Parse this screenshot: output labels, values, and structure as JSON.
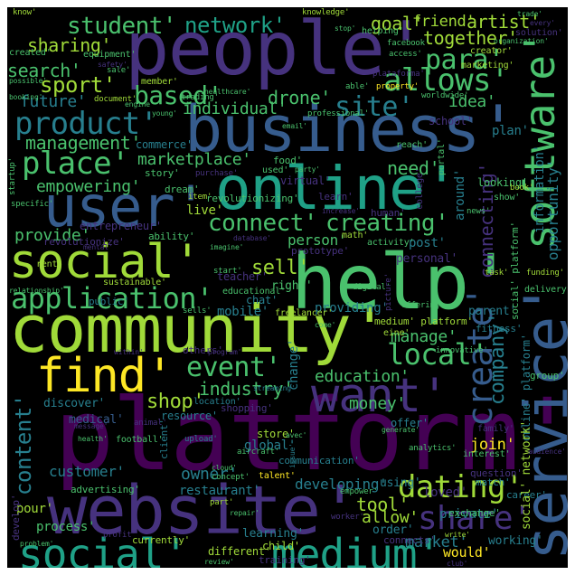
{
  "palette": [
    "#440154",
    "#46327e",
    "#365c8d",
    "#277f8e",
    "#1fa187",
    "#4ac16d",
    "#a0da39",
    "#fde725"
  ],
  "words": [
    {
      "text": "people'",
      "color": "#46327e"
    },
    {
      "text": "platform'",
      "color": "#440154"
    },
    {
      "text": "website'",
      "color": "#46327e"
    },
    {
      "text": "community'",
      "color": "#a0da39"
    },
    {
      "text": "help'",
      "color": "#4ac16d"
    },
    {
      "text": "business'",
      "color": "#365c8d"
    },
    {
      "text": "online'",
      "color": "#1fa187"
    },
    {
      "text": "user'",
      "color": "#365c8d"
    },
    {
      "text": "service'",
      "color": "#365c8d"
    },
    {
      "text": "social'",
      "color": "#a0da39"
    },
    {
      "text": "social'",
      "color": "#1fa187"
    },
    {
      "text": "medium'",
      "color": "#1fa187"
    },
    {
      "text": "want'",
      "color": "#46327e"
    },
    {
      "text": "find'",
      "color": "#fde725"
    },
    {
      "text": "software'",
      "color": "#4ac16d"
    },
    {
      "text": "application'",
      "color": "#4ac16d"
    },
    {
      "text": "student'",
      "color": "#4ac16d"
    },
    {
      "text": "network'",
      "color": "#1fa187"
    },
    {
      "text": "product'",
      "color": "#277f8e"
    },
    {
      "text": "place'",
      "color": "#4ac16d"
    },
    {
      "text": "connect'",
      "color": "#4ac16d"
    },
    {
      "text": "creating'",
      "color": "#4ac16d"
    },
    {
      "text": "event'",
      "color": "#4ac16d"
    },
    {
      "text": "local'",
      "color": "#4ac16d"
    },
    {
      "text": "dating'",
      "color": "#a0da39"
    },
    {
      "text": "share'",
      "color": "#46327e"
    },
    {
      "text": "create'",
      "color": "#365c8d"
    },
    {
      "text": "allows'",
      "color": "#4ac16d"
    },
    {
      "text": "site'",
      "color": "#277f8e"
    },
    {
      "text": "based'",
      "color": "#4ac16d"
    },
    {
      "text": "para'",
      "color": "#4ac16d"
    },
    {
      "text": "content'",
      "color": "#277f8e"
    },
    {
      "text": "company'",
      "color": "#277f8e"
    },
    {
      "text": "sport'",
      "color": "#a0da39"
    },
    {
      "text": "search'",
      "color": "#4ac16d"
    },
    {
      "text": "sharing'",
      "color": "#a0da39"
    },
    {
      "text": "goal'",
      "color": "#a0da39"
    },
    {
      "text": "friend'",
      "color": "#a0da39"
    },
    {
      "text": "artist'",
      "color": "#a0da39"
    },
    {
      "text": "together'",
      "color": "#a0da39"
    },
    {
      "text": "management'",
      "color": "#4ac16d"
    },
    {
      "text": "marketplace'",
      "color": "#4ac16d"
    },
    {
      "text": "empowering'",
      "color": "#4ac16d"
    },
    {
      "text": "need'",
      "color": "#4ac16d"
    },
    {
      "text": "idea'",
      "color": "#4ac16d"
    },
    {
      "text": "drone'",
      "color": "#4ac16d"
    },
    {
      "text": "individual'",
      "color": "#4ac16d"
    },
    {
      "text": "future'",
      "color": "#277f8e"
    },
    {
      "text": "provide'",
      "color": "#4ac16d"
    },
    {
      "text": "sell'",
      "color": "#a0da39"
    },
    {
      "text": "industry'",
      "color": "#4ac16d"
    },
    {
      "text": "education'",
      "color": "#4ac16d"
    },
    {
      "text": "manage'",
      "color": "#4ac16d"
    },
    {
      "text": "person'",
      "color": "#4ac16d"
    },
    {
      "text": "connecting'",
      "color": "#46327e"
    },
    {
      "text": "information'",
      "color": "#277f8e"
    },
    {
      "text": "opportunity'",
      "color": "#277f8e"
    },
    {
      "text": "shop'",
      "color": "#a0da39"
    },
    {
      "text": "money'",
      "color": "#4ac16d"
    },
    {
      "text": "customer'",
      "color": "#277f8e"
    },
    {
      "text": "owner'",
      "color": "#277f8e"
    },
    {
      "text": "tool'",
      "color": "#a0da39"
    },
    {
      "text": "allow'",
      "color": "#a0da39"
    },
    {
      "text": "market'",
      "color": "#277f8e"
    },
    {
      "text": "join'",
      "color": "#fde725"
    },
    {
      "text": "developing'",
      "color": "#277f8e"
    },
    {
      "text": "restaurant'",
      "color": "#277f8e"
    },
    {
      "text": "process'",
      "color": "#4ac16d"
    },
    {
      "text": "learning'",
      "color": "#277f8e"
    },
    {
      "text": "different'",
      "color": "#a0da39"
    },
    {
      "text": "would'",
      "color": "#fde725"
    },
    {
      "text": "working'",
      "color": "#277f8e"
    },
    {
      "text": "private'",
      "color": "#277f8e"
    },
    {
      "text": "change'",
      "color": "#277f8e"
    },
    {
      "text": "plan'",
      "color": "#277f8e"
    },
    {
      "text": "post'",
      "color": "#277f8e"
    },
    {
      "text": "around'",
      "color": "#277f8e"
    },
    {
      "text": "mobile'",
      "color": "#277f8e"
    },
    {
      "text": "parent'",
      "color": "#277f8e"
    },
    {
      "text": "chat'",
      "color": "#277f8e"
    },
    {
      "text": "right'",
      "color": "#4ac16d"
    },
    {
      "text": "live'",
      "color": "#a0da39"
    },
    {
      "text": "providing'",
      "color": "#277f8e"
    },
    {
      "text": "resource'",
      "color": "#277f8e"
    },
    {
      "text": "global'",
      "color": "#277f8e"
    },
    {
      "text": "discover'",
      "color": "#277f8e"
    },
    {
      "text": "medical'",
      "color": "#365c8d"
    },
    {
      "text": "store'",
      "color": "#a0da39"
    },
    {
      "text": "loved'",
      "color": "#46327e"
    },
    {
      "text": "using'",
      "color": "#277f8e"
    },
    {
      "text": "offer'",
      "color": "#277f8e"
    },
    {
      "text": "order'",
      "color": "#277f8e"
    },
    {
      "text": "child'",
      "color": "#a0da39"
    },
    {
      "text": "personal'",
      "color": "#46327e"
    },
    {
      "text": "pour'",
      "color": "#a0da39"
    },
    {
      "text": "entrepreneur'",
      "color": "#46327e"
    },
    {
      "text": "fitness'",
      "color": "#277f8e"
    },
    {
      "text": "teacher'",
      "color": "#46327e"
    },
    {
      "text": "looking'",
      "color": "#4ac16d"
    },
    {
      "text": "school'",
      "color": "#46327e"
    },
    {
      "text": "food'",
      "color": "#4ac16d"
    },
    {
      "text": "reach'",
      "color": "#4ac16d"
    },
    {
      "text": "commerce'",
      "color": "#277f8e"
    },
    {
      "text": "story'",
      "color": "#4ac16d"
    },
    {
      "text": "dream'",
      "color": "#4ac16d"
    },
    {
      "text": "ability'",
      "color": "#4ac16d"
    },
    {
      "text": "revolutionize'",
      "color": "#46327e"
    },
    {
      "text": "revolutionizing'",
      "color": "#4ac16d"
    },
    {
      "text": "human'",
      "color": "#46327e"
    },
    {
      "text": "activity'",
      "color": "#4ac16d"
    },
    {
      "text": "prototype'",
      "color": "#46327e"
    },
    {
      "text": "math'",
      "color": "#a0da39"
    },
    {
      "text": "virtual'",
      "color": "#46327e"
    },
    {
      "text": "learn'",
      "color": "#46327e"
    },
    {
      "text": "used'",
      "color": "#4ac16d"
    },
    {
      "text": "rent'",
      "color": "#a0da39"
    },
    {
      "text": "sustainable'",
      "color": "#a0da39"
    },
    {
      "text": "educational'",
      "color": "#4ac16d"
    },
    {
      "text": "public'",
      "color": "#277f8e"
    },
    {
      "text": "freelancer'",
      "color": "#a0da39"
    },
    {
      "text": "medium' platform'",
      "color": "#a0da39"
    },
    {
      "text": "eine'",
      "color": "#a0da39"
    },
    {
      "text": "others'",
      "color": "#46327e"
    },
    {
      "text": "innovative'",
      "color": "#4ac16d"
    },
    {
      "text": "location'",
      "color": "#277f8e"
    },
    {
      "text": "shopping'",
      "color": "#46327e"
    },
    {
      "text": "football'",
      "color": "#4ac16d"
    },
    {
      "text": "animal'",
      "color": "#46327e"
    },
    {
      "text": "client'",
      "color": "#277f8e"
    },
    {
      "text": "upload'",
      "color": "#277f8e"
    },
    {
      "text": "concept'",
      "color": "#4ac16d"
    },
    {
      "text": "talent'",
      "color": "#fde725"
    },
    {
      "text": "communication'",
      "color": "#277f8e"
    },
    {
      "text": "advertising'",
      "color": "#4ac16d"
    },
    {
      "text": "part'",
      "color": "#a0da39"
    },
    {
      "text": "analytics'",
      "color": "#4ac16d"
    },
    {
      "text": "question'",
      "color": "#46327e"
    },
    {
      "text": "career'",
      "color": "#277f8e"
    },
    {
      "text": "exchange'",
      "color": "#4ac16d"
    },
    {
      "text": "connects'",
      "color": "#46327e"
    },
    {
      "text": "currently'",
      "color": "#a0da39"
    },
    {
      "text": "profit'",
      "color": "#46327e"
    },
    {
      "text": "training'",
      "color": "#46327e"
    },
    {
      "text": "worker'",
      "color": "#46327e"
    },
    {
      "text": "empower'",
      "color": "#4ac16d"
    },
    {
      "text": "interest'",
      "color": "#4ac16d"
    },
    {
      "text": "match'",
      "color": "#277f8e"
    },
    {
      "text": "family'",
      "color": "#46327e"
    },
    {
      "text": "group'",
      "color": "#4ac16d"
    },
    {
      "text": "delivery'",
      "color": "#4ac16d"
    },
    {
      "text": "funding'",
      "color": "#a0da39"
    },
    {
      "text": "task'",
      "color": "#a0da39"
    },
    {
      "text": "book'",
      "color": "#a0da39"
    },
    {
      "text": "social' platform'",
      "color": "#4ac16d"
    },
    {
      "text": "online' platform'",
      "color": "#277f8e"
    },
    {
      "text": "social' network'",
      "color": "#a0da39"
    },
    {
      "text": "news'",
      "color": "#4ac16d"
    },
    {
      "text": "show'",
      "color": "#4ac16d"
    },
    {
      "text": "member'",
      "color": "#a0da39"
    },
    {
      "text": "equipment'",
      "color": "#4ac16d"
    },
    {
      "text": "creator'",
      "color": "#a0da39"
    },
    {
      "text": "facebook'",
      "color": "#4ac16d"
    },
    {
      "text": "access'",
      "color": "#4ac16d"
    },
    {
      "text": "marketing'",
      "color": "#a0da39"
    },
    {
      "text": "able'",
      "color": "#4ac16d"
    },
    {
      "text": "property'",
      "color": "#fde725"
    },
    {
      "text": "trading'",
      "color": "#4ac16d"
    },
    {
      "text": "document'",
      "color": "#a0da39"
    },
    {
      "text": "sale'",
      "color": "#4ac16d"
    },
    {
      "text": "created'",
      "color": "#4ac16d"
    },
    {
      "text": "solution'",
      "color": "#46327e"
    },
    {
      "text": "helping'",
      "color": "#4ac16d"
    },
    {
      "text": "knowledge'",
      "color": "#a0da39"
    },
    {
      "text": "stop'",
      "color": "#4ac16d"
    },
    {
      "text": "trade'",
      "color": "#4ac16d"
    },
    {
      "text": "every'",
      "color": "#46327e"
    },
    {
      "text": "organization'",
      "color": "#4ac16d"
    },
    {
      "text": "know'",
      "color": "#a0da39"
    },
    {
      "text": "worldwide'",
      "color": "#4ac16d"
    },
    {
      "text": "professional'",
      "color": "#4ac16d"
    },
    {
      "text": "email'",
      "color": "#4ac16d"
    },
    {
      "text": "young'",
      "color": "#4ac16d"
    },
    {
      "text": "purchase'",
      "color": "#46327e"
    },
    {
      "text": "party'",
      "color": "#4ac16d"
    },
    {
      "text": "college'",
      "color": "#46327e"
    },
    {
      "text": "portal'",
      "color": "#4ac16d"
    },
    {
      "text": "item'",
      "color": "#a0da39"
    },
    {
      "text": "increase'",
      "color": "#46327e"
    },
    {
      "text": "specific'",
      "color": "#4ac16d"
    },
    {
      "text": "startup'",
      "color": "#4ac16d"
    },
    {
      "text": "mental'",
      "color": "#46327e"
    },
    {
      "text": "imagine'",
      "color": "#4ac16d"
    },
    {
      "text": "start'",
      "color": "#4ac16d"
    },
    {
      "text": "database'",
      "color": "#46327e"
    },
    {
      "text": "relationship'",
      "color": "#4ac16d"
    },
    {
      "text": "digital'",
      "color": "#4ac16d"
    },
    {
      "text": "picture'",
      "color": "#46327e"
    },
    {
      "text": "come'",
      "color": "#4ac16d"
    },
    {
      "text": "offering'",
      "color": "#4ac16d"
    },
    {
      "text": "sells'",
      "color": "#4ac16d"
    },
    {
      "text": "program'",
      "color": "#46327e"
    },
    {
      "text": "within'",
      "color": "#46327e"
    },
    {
      "text": "streaming'",
      "color": "#277f8e"
    },
    {
      "text": "message'",
      "color": "#46327e"
    },
    {
      "text": "health'",
      "color": "#4ac16d"
    },
    {
      "text": "cloud'",
      "color": "#4ac16d"
    },
    {
      "text": "aircraft'",
      "color": "#4ac16d"
    },
    {
      "text": "issue'",
      "color": "#277f8e"
    },
    {
      "text": "avec'",
      "color": "#4ac16d"
    },
    {
      "text": "generate'",
      "color": "#4ac16d"
    },
    {
      "text": "audience'",
      "color": "#46327e"
    },
    {
      "text": "repair'",
      "color": "#4ac16d"
    },
    {
      "text": "review'",
      "color": "#4ac16d"
    },
    {
      "text": "club'",
      "color": "#46327e"
    },
    {
      "text": "write'",
      "color": "#a0da39"
    },
    {
      "text": "problem'",
      "color": "#4ac16d"
    },
    {
      "text": "develop'",
      "color": "#46327e"
    },
    {
      "text": "engine'",
      "color": "#4ac16d"
    },
    {
      "text": "safety'",
      "color": "#46327e"
    },
    {
      "text": "possible'",
      "color": "#4ac16d"
    },
    {
      "text": "booking'",
      "color": "#4ac16d"
    },
    {
      "text": "healthcare'",
      "color": "#4ac16d"
    },
    {
      "text": "plataforma'",
      "color": "#46327e"
    }
  ]
}
